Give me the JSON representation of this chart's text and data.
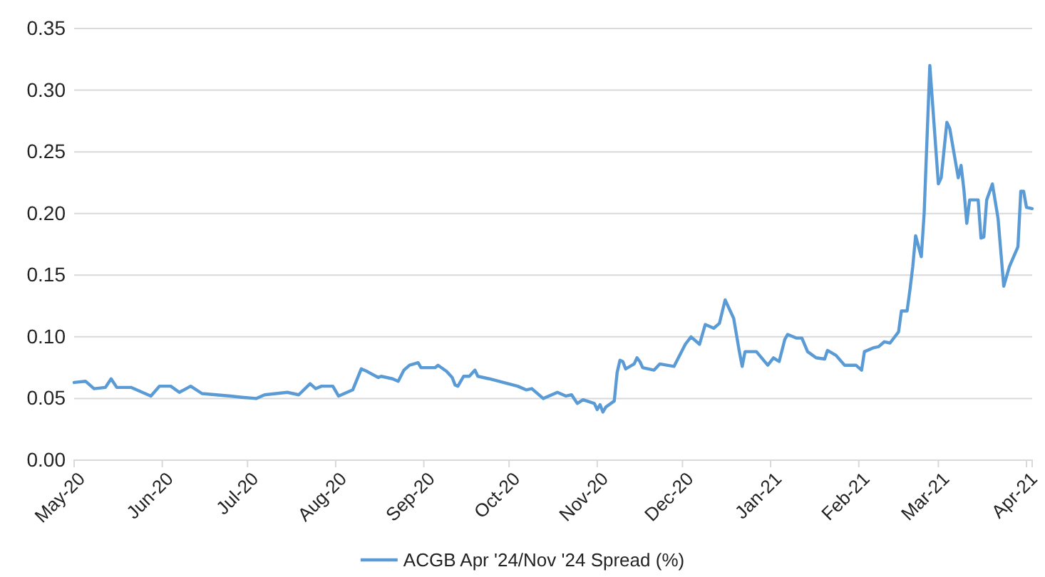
{
  "chart_data": {
    "type": "line",
    "x": [
      "2020-05-01",
      "2020-05-05",
      "2020-05-08",
      "2020-05-12",
      "2020-05-14",
      "2020-05-16",
      "2020-05-21",
      "2020-05-28",
      "2020-05-31",
      "2020-06-04",
      "2020-06-07",
      "2020-06-11",
      "2020-06-15",
      "2020-06-20",
      "2020-06-25",
      "2020-06-29",
      "2020-07-04",
      "2020-07-07",
      "2020-07-15",
      "2020-07-19",
      "2020-07-23",
      "2020-07-25",
      "2020-07-27",
      "2020-07-31",
      "2020-08-02",
      "2020-08-07",
      "2020-08-10",
      "2020-08-12",
      "2020-08-16",
      "2020-08-17",
      "2020-08-21",
      "2020-08-23",
      "2020-08-25",
      "2020-08-27",
      "2020-08-30",
      "2020-08-31",
      "2020-09-05",
      "2020-09-06",
      "2020-09-09",
      "2020-09-11",
      "2020-09-12",
      "2020-09-13",
      "2020-09-15",
      "2020-09-17",
      "2020-09-19",
      "2020-09-20",
      "2020-09-24",
      "2020-09-29",
      "2020-10-04",
      "2020-10-07",
      "2020-10-09",
      "2020-10-13",
      "2020-10-18",
      "2020-10-21",
      "2020-10-23",
      "2020-10-25",
      "2020-10-27",
      "2020-10-31",
      "2020-11-01",
      "2020-11-02",
      "2020-11-03",
      "2020-11-04",
      "2020-11-07",
      "2020-11-08",
      "2020-11-09",
      "2020-11-10",
      "2020-11-11",
      "2020-11-14",
      "2020-11-15",
      "2020-11-16",
      "2020-11-17",
      "2020-11-21",
      "2020-11-23",
      "2020-11-28",
      "2020-12-02",
      "2020-12-04",
      "2020-12-07",
      "2020-12-09",
      "2020-12-12",
      "2020-12-14",
      "2020-12-16",
      "2020-12-19",
      "2020-12-21",
      "2020-12-22",
      "2020-12-23",
      "2020-12-27",
      "2020-12-31",
      "2021-01-02",
      "2021-01-04",
      "2021-01-06",
      "2021-01-07",
      "2021-01-10",
      "2021-01-12",
      "2021-01-14",
      "2021-01-17",
      "2021-01-20",
      "2021-01-21",
      "2021-01-24",
      "2021-01-27",
      "2021-01-31",
      "2021-02-02",
      "2021-02-03",
      "2021-02-06",
      "2021-02-08",
      "2021-02-10",
      "2021-02-12",
      "2021-02-15",
      "2021-02-16",
      "2021-02-18",
      "2021-02-19",
      "2021-02-20",
      "2021-02-21",
      "2021-02-23",
      "2021-02-24",
      "2021-02-26",
      "2021-03-01",
      "2021-03-02",
      "2021-03-04",
      "2021-03-05",
      "2021-03-08",
      "2021-03-09",
      "2021-03-10",
      "2021-03-11",
      "2021-03-12",
      "2021-03-15",
      "2021-03-16",
      "2021-03-17",
      "2021-03-18",
      "2021-03-20",
      "2021-03-22",
      "2021-03-24",
      "2021-03-26",
      "2021-03-29",
      "2021-03-30",
      "2021-03-31",
      "2021-04-01",
      "2021-04-03"
    ],
    "series": [
      {
        "name": "ACGB Apr '24/Nov '24 Spread (%)",
        "color": "#5b9bd5",
        "values": [
          0.063,
          0.064,
          0.058,
          0.059,
          0.066,
          0.059,
          0.059,
          0.052,
          0.06,
          0.06,
          0.055,
          0.06,
          0.054,
          0.053,
          0.052,
          0.051,
          0.05,
          0.053,
          0.055,
          0.053,
          0.062,
          0.058,
          0.06,
          0.06,
          0.052,
          0.057,
          0.074,
          0.072,
          0.067,
          0.068,
          0.066,
          0.064,
          0.073,
          0.077,
          0.079,
          0.075,
          0.075,
          0.077,
          0.072,
          0.067,
          0.061,
          0.06,
          0.068,
          0.068,
          0.073,
          0.068,
          0.066,
          0.063,
          0.06,
          0.057,
          0.058,
          0.05,
          0.055,
          0.052,
          0.053,
          0.046,
          0.049,
          0.046,
          0.041,
          0.045,
          0.039,
          0.043,
          0.048,
          0.071,
          0.081,
          0.08,
          0.074,
          0.078,
          0.083,
          0.08,
          0.075,
          0.073,
          0.078,
          0.076,
          0.094,
          0.1,
          0.094,
          0.11,
          0.107,
          0.111,
          0.13,
          0.115,
          0.088,
          0.076,
          0.088,
          0.088,
          0.077,
          0.083,
          0.08,
          0.098,
          0.102,
          0.099,
          0.099,
          0.088,
          0.083,
          0.082,
          0.089,
          0.085,
          0.077,
          0.077,
          0.073,
          0.088,
          0.091,
          0.092,
          0.096,
          0.095,
          0.104,
          0.121,
          0.121,
          0.138,
          0.157,
          0.182,
          0.165,
          0.2,
          0.32,
          0.224,
          0.229,
          0.274,
          0.269,
          0.229,
          0.239,
          0.219,
          0.192,
          0.211,
          0.211,
          0.18,
          0.181,
          0.211,
          0.224,
          0.196,
          0.141,
          0.157,
          0.173,
          0.218,
          0.218,
          0.205,
          0.204
        ]
      }
    ],
    "xlim": [
      "2020-05-01",
      "2021-04-03"
    ],
    "xticks": [
      {
        "value": "2020-05-01",
        "label": "May-20"
      },
      {
        "value": "2020-06-01",
        "label": "Jun-20"
      },
      {
        "value": "2020-07-01",
        "label": "Jul-20"
      },
      {
        "value": "2020-08-01",
        "label": "Aug-20"
      },
      {
        "value": "2020-09-01",
        "label": "Sep-20"
      },
      {
        "value": "2020-10-01",
        "label": "Oct-20"
      },
      {
        "value": "2020-11-01",
        "label": "Nov-20"
      },
      {
        "value": "2020-12-01",
        "label": "Dec-20"
      },
      {
        "value": "2021-01-01",
        "label": "Jan-21"
      },
      {
        "value": "2021-02-01",
        "label": "Feb-21"
      },
      {
        "value": "2021-03-01",
        "label": "Mar-21"
      },
      {
        "value": "2021-04-01",
        "label": "Apr-21"
      }
    ],
    "ylim": [
      0,
      0.35
    ],
    "yticks": [
      {
        "value": 0,
        "label": "0.00"
      },
      {
        "value": 0.05,
        "label": "0.05"
      },
      {
        "value": 0.1,
        "label": "0.10"
      },
      {
        "value": 0.15,
        "label": "0.15"
      },
      {
        "value": 0.2,
        "label": "0.20"
      },
      {
        "value": 0.25,
        "label": "0.25"
      },
      {
        "value": 0.3,
        "label": "0.30"
      },
      {
        "value": 0.35,
        "label": "0.35"
      }
    ],
    "grid": "y",
    "legend": "bottom",
    "marker": "none",
    "line_style": "solid"
  }
}
